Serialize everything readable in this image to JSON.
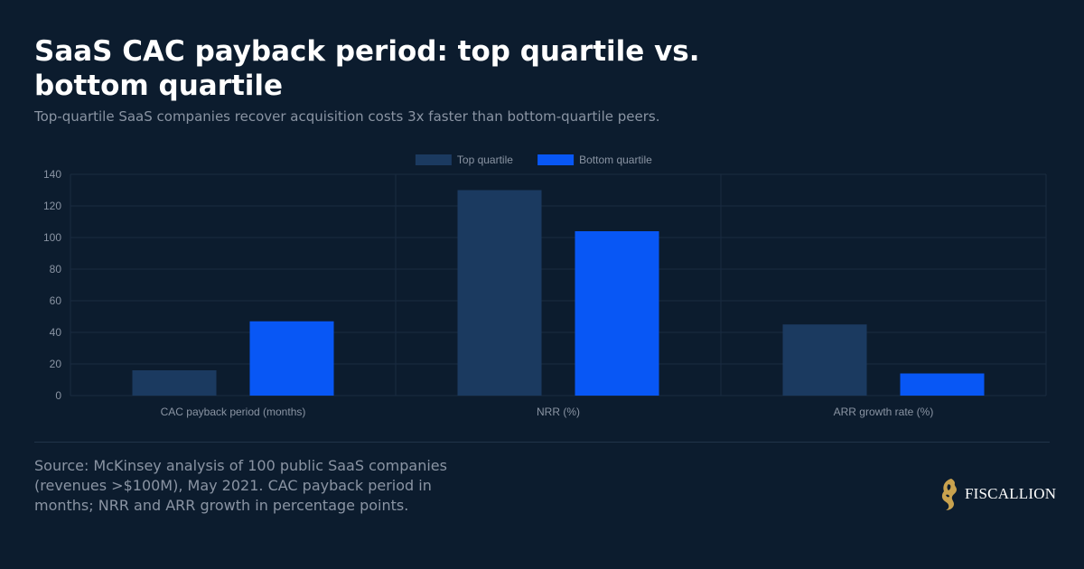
{
  "title": "SaaS CAC payback period: top quartile vs. bottom quartile",
  "subtitle": "Top-quartile SaaS companies recover acquisition costs 3x faster than bottom-quartile peers.",
  "source": "Source: McKinsey analysis of 100 public SaaS companies (revenues >$100M), May 2021. CAC payback period in months; NRR and ARR growth in percentage points.",
  "brand": {
    "name": "FISCALLION",
    "logo_icon": "golden-lion-head-icon"
  },
  "colors": {
    "background": "#0c1c2e",
    "top_quartile": "#1b3a60",
    "bottom_quartile": "#0857f5",
    "grid": "#1a2b40",
    "tick_text": "#8a94a3",
    "logo_gold": "#c9a24e"
  },
  "chart_data": {
    "type": "bar",
    "categories": [
      "CAC payback period (months)",
      "NRR (%)",
      "ARR growth rate (%)"
    ],
    "series": [
      {
        "name": "Top quartile",
        "values": [
          16,
          130,
          45
        ],
        "color": "#1b3a60"
      },
      {
        "name": "Bottom quartile",
        "values": [
          47,
          104,
          14
        ],
        "color": "#0857f5"
      }
    ],
    "title": "",
    "xlabel": "",
    "ylabel": "",
    "ylim": [
      0,
      140
    ],
    "yticks": [
      0,
      20,
      40,
      60,
      80,
      100,
      120,
      140
    ],
    "grid": true,
    "legend": "top-center"
  }
}
